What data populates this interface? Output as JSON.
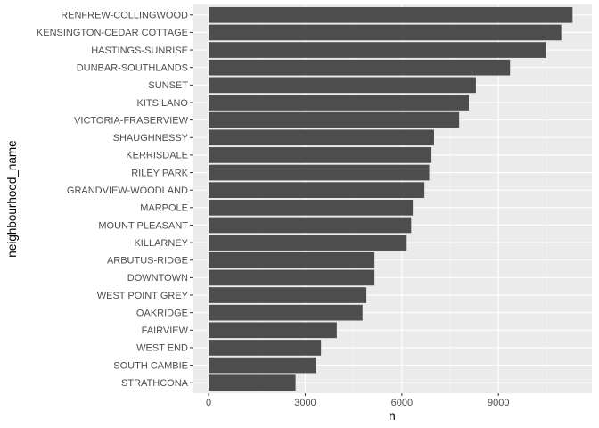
{
  "chart_data": {
    "type": "bar",
    "orientation": "horizontal",
    "xlabel": "n",
    "ylabel": "neighbourhood_name",
    "xlim": [
      -500,
      11900
    ],
    "xticks": [
      0,
      3000,
      6000,
      9000
    ],
    "xtick_labels": [
      "0",
      "3000",
      "6000",
      "9000"
    ],
    "grid": true,
    "categories": [
      "RENFREW-COLLINGWOOD",
      "KENSINGTON-CEDAR COTTAGE",
      "HASTINGS-SUNRISE",
      "DUNBAR-SOUTHLANDS",
      "SUNSET",
      "KITSILANO",
      "VICTORIA-FRASERVIEW",
      "SHAUGHNESSY",
      "KERRISDALE",
      "RILEY PARK",
      "GRANDVIEW-WOODLAND",
      "MARPOLE",
      "MOUNT PLEASANT",
      "KILLARNEY",
      "ARBUTUS-RIDGE",
      "DOWNTOWN",
      "WEST POINT GREY",
      "OAKRIDGE",
      "FAIRVIEW",
      "WEST END",
      "SOUTH CAMBIE",
      "STRATHCONA"
    ],
    "values": [
      11300,
      10950,
      10480,
      9360,
      8300,
      8080,
      7780,
      7000,
      6920,
      6850,
      6700,
      6340,
      6290,
      6150,
      5150,
      5150,
      4900,
      4780,
      3980,
      3490,
      3340,
      2700
    ],
    "colors": {
      "bar": "#4d4d4d",
      "panel": "#ebebeb",
      "grid_major": "#ffffff",
      "grid_minor": "#f5f5f5",
      "text": "#4d4d4d",
      "tick": "#333333"
    }
  }
}
